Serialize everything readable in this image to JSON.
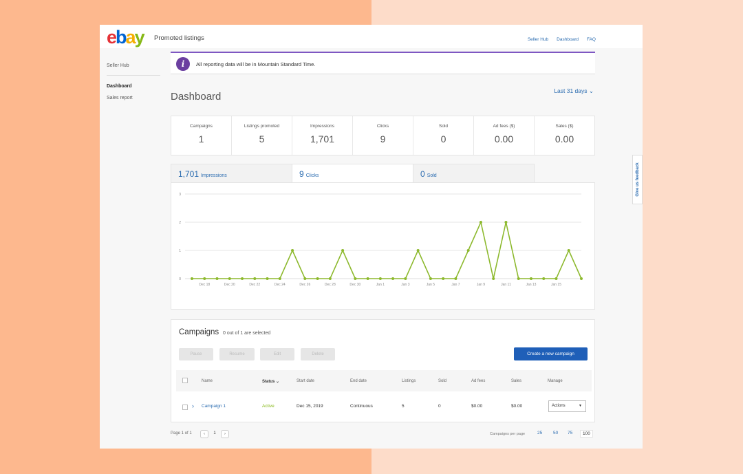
{
  "topbar": {
    "logo_letters": [
      "e",
      "b",
      "a",
      "y"
    ],
    "app_title": "Promoted listings",
    "links": [
      "Seller Hub",
      "Dashboard",
      "FAQ"
    ]
  },
  "sidebar": {
    "items": [
      "Seller Hub",
      "Dashboard",
      "Sales report"
    ]
  },
  "info": {
    "icon": "info-icon",
    "text": "All reporting data will be in Mountain Standard Time."
  },
  "page": {
    "title": "Dashboard",
    "date_filter": "Last 31 days ⌄"
  },
  "stats": [
    {
      "label": "Campaigns",
      "value": "1"
    },
    {
      "label": "Listings promoted",
      "value": "5"
    },
    {
      "label": "Impressions",
      "value": "1,701"
    },
    {
      "label": "Clicks",
      "value": "9"
    },
    {
      "label": "Sold",
      "value": "0"
    },
    {
      "label": "Ad fees ($)",
      "value": "0.00"
    },
    {
      "label": "Sales ($)",
      "value": "0.00"
    }
  ],
  "tabs": [
    {
      "num": "1,701",
      "label": "Impressions"
    },
    {
      "num": "9",
      "label": "Clicks"
    },
    {
      "num": "0",
      "label": "Sold"
    }
  ],
  "chart_data": {
    "type": "line",
    "y_ticks": [
      "0",
      "1",
      "2",
      "3"
    ],
    "ylim": [
      0,
      3
    ],
    "x_labels": [
      "Dec 18",
      "Dec 20",
      "Dec 22",
      "Dec 24",
      "Dec 26",
      "Dec 28",
      "Dec 30",
      "Jan 1",
      "Jan 3",
      "Jan 5",
      "Jan 7",
      "Jan 9",
      "Jan 11",
      "Jan 13",
      "Jan 15"
    ],
    "series": [
      {
        "values": [
          0,
          0,
          0,
          0,
          0,
          0,
          0,
          0,
          1,
          0,
          0,
          0,
          1,
          0,
          0,
          0,
          0,
          0,
          1,
          0,
          0,
          0,
          1,
          2,
          0,
          2,
          0,
          0,
          0,
          0,
          1,
          0
        ]
      }
    ],
    "color": "#8DB92E",
    "grid": true
  },
  "campaigns": {
    "title": "Campaigns",
    "selected_text": "0 out of 1 are selected",
    "buttons": [
      "Pause",
      "Resume",
      "Edit",
      "Delete"
    ],
    "create_label": "Create a new campaign",
    "columns": [
      "Name",
      "Status ⌄",
      "Start date",
      "End date",
      "Listings",
      "Sold",
      "Ad fees",
      "Sales",
      "Manage"
    ],
    "rows": [
      {
        "name": "Campaign 1",
        "status": "Active",
        "start": "Dec 15, 2019",
        "end": "Continuous",
        "listings": "5",
        "sold": "0",
        "ad_fees": "$0.00",
        "sales": "$0.00",
        "manage": "Actions"
      }
    ]
  },
  "pagination": {
    "text": "Page 1 of 1",
    "prev": "‹",
    "current": "1",
    "next": "›",
    "per_page_label": "Campaigns per page",
    "options": [
      "25",
      "50",
      "75",
      "100"
    ]
  },
  "feedback": "Give us feedback"
}
